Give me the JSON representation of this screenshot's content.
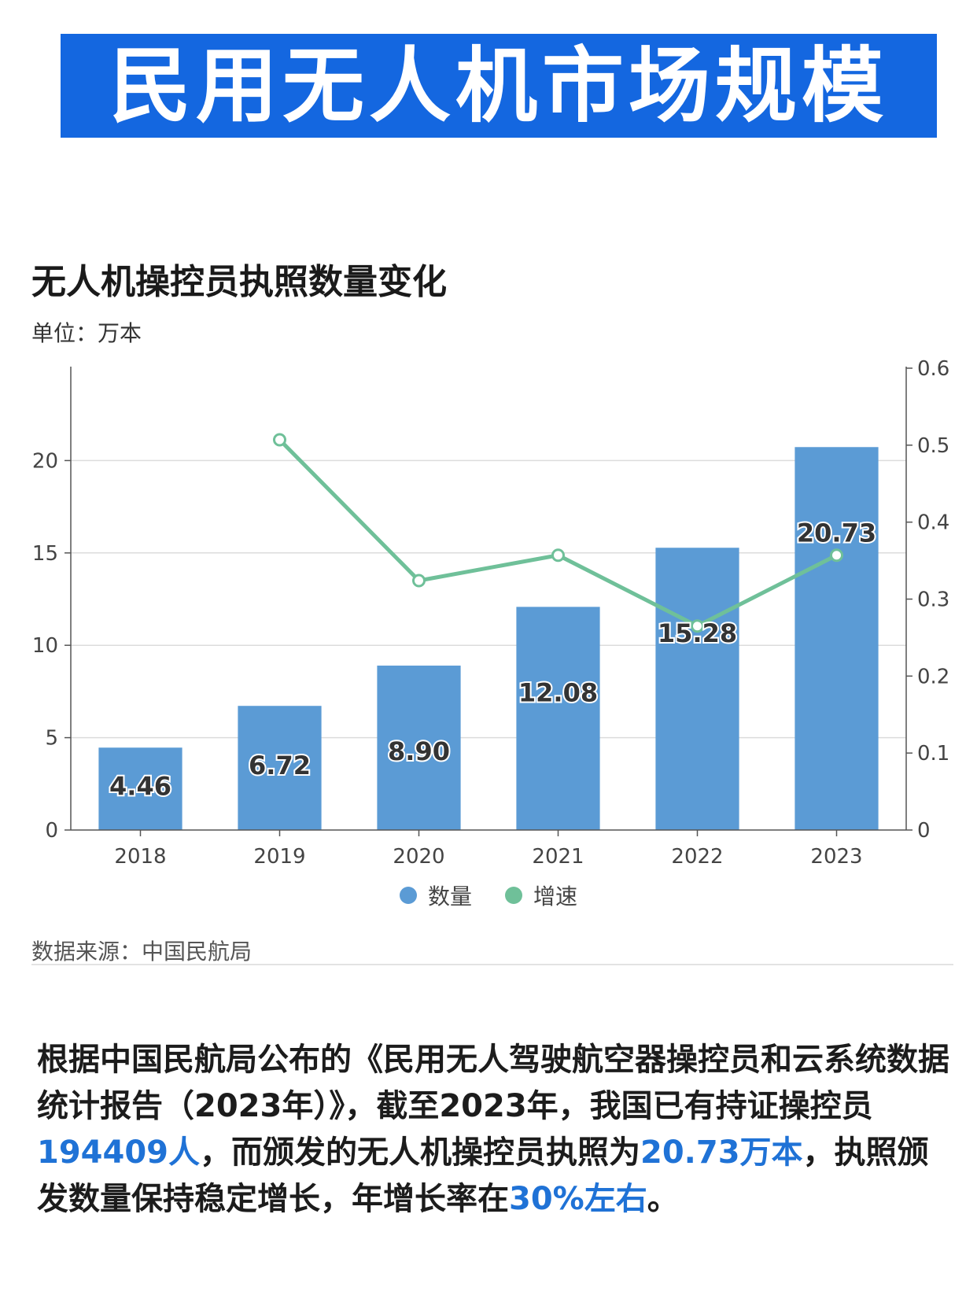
{
  "banner_title": "民用无人机市场规模",
  "chart_data": {
    "type": "bar",
    "title": "无人机操控员执照数量变化",
    "unit_label": "单位：万本",
    "categories": [
      "2018",
      "2019",
      "2020",
      "2021",
      "2022",
      "2023"
    ],
    "series": [
      {
        "name": "数量",
        "type": "bar",
        "axis": "left",
        "color": "#5b9bd5",
        "values": [
          4.46,
          6.72,
          8.9,
          12.08,
          15.28,
          20.73
        ],
        "data_labels": [
          "4.46",
          "6.72",
          "8.90",
          "12.08",
          "15.28",
          "20.73"
        ]
      },
      {
        "name": "增速",
        "type": "line",
        "axis": "right",
        "color": "#6fc099",
        "values": [
          null,
          0.507,
          0.324,
          0.357,
          0.265,
          0.357
        ]
      }
    ],
    "left_axis": {
      "ylim": [
        0,
        25
      ],
      "ticks": [
        "0",
        "5",
        "10",
        "15",
        "20"
      ]
    },
    "right_axis": {
      "ylim": [
        0,
        0.6
      ],
      "ticks": [
        "0",
        "0.1",
        "0.2",
        "0.3",
        "0.4",
        "0.5",
        "0.6"
      ]
    },
    "grid": true,
    "legend_position": "bottom-center",
    "source": "数据来源：中国民航局"
  },
  "paragraph": {
    "t1": "根据中国民航局公布的《民用无人驾驶航空器操控员和云系统数据统计报告（2023年）》，截至2023年，我国已有持证操控员",
    "h1": "194409人",
    "t2": "，而颁发的无人机操控员执照为",
    "h2": "20.73万本",
    "t3": "，执照颁发数量保持稳定增长，年增长率在",
    "h3": "30%左右",
    "t4": "。"
  },
  "colors": {
    "banner": "#1467e0",
    "highlight": "#1f72d6"
  }
}
